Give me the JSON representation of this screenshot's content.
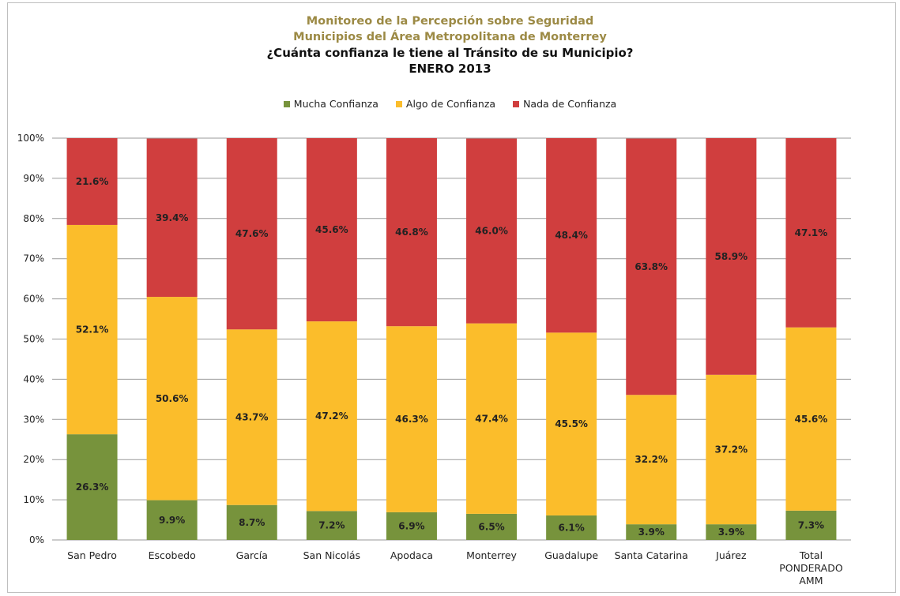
{
  "header": {
    "title_line1": "Monitoreo de la Percepción  sobre Seguridad",
    "title_line2": "Municipios del Área Metropolitana de Monterrey",
    "question": "¿Cuánta confianza le tiene al Tránsito de su Municipio?",
    "period": "ENERO 2013"
  },
  "colors": {
    "mucha": "#77933c",
    "algo": "#fbbd2b",
    "nada": "#d03e3e",
    "grid": "#9a9a9a"
  },
  "chart_data": {
    "type": "bar",
    "stacked": true,
    "percent": true,
    "categories": [
      [
        "San Pedro"
      ],
      [
        "Escobedo"
      ],
      [
        "García"
      ],
      [
        "San Nicolás"
      ],
      [
        "Apodaca"
      ],
      [
        "Monterrey"
      ],
      [
        "Guadalupe"
      ],
      [
        "Santa Catarina"
      ],
      [
        "Juárez"
      ],
      [
        "Total",
        "PONDERADO",
        "AMM"
      ]
    ],
    "series": [
      {
        "name": "Mucha Confianza",
        "color_key": "mucha",
        "values": [
          26.3,
          9.9,
          8.7,
          7.2,
          6.9,
          6.5,
          6.1,
          3.9,
          3.9,
          7.3
        ],
        "labels": [
          "26.3%",
          "9.9%",
          "8.7%",
          "7.2%",
          "6.9%",
          "6.5%",
          "6.1%",
          "3.9%",
          "3.9%",
          "7.3%"
        ]
      },
      {
        "name": "Algo de Confianza",
        "color_key": "algo",
        "values": [
          52.1,
          50.6,
          43.7,
          47.2,
          46.3,
          47.4,
          45.5,
          32.2,
          37.2,
          45.6
        ],
        "labels": [
          "52.1%",
          "50.6%",
          "43.7%",
          "47.2%",
          "46.3%",
          "47.4%",
          "45.5%",
          "32.2%",
          "37.2%",
          "45.6%"
        ]
      },
      {
        "name": "Nada de Confianza",
        "color_key": "nada",
        "values": [
          21.6,
          39.4,
          47.6,
          45.6,
          46.8,
          46.0,
          48.4,
          63.8,
          58.9,
          47.1
        ],
        "labels": [
          "21.6%",
          "39.4%",
          "47.6%",
          "45.6%",
          "46.8%",
          "46.0%",
          "48.4%",
          "63.8%",
          "58.9%",
          "47.1%"
        ]
      }
    ],
    "yticks": [
      "0%",
      "10%",
      "20%",
      "30%",
      "40%",
      "50%",
      "60%",
      "70%",
      "80%",
      "90%",
      "100%"
    ],
    "ylim": [
      0,
      100
    ],
    "grid": true,
    "legend_position": "top"
  }
}
